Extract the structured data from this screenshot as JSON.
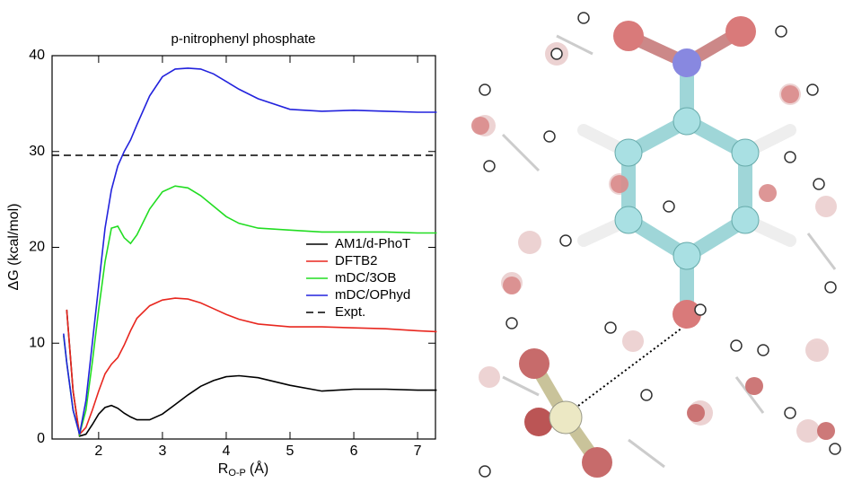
{
  "chart_data": {
    "type": "line",
    "title": "p-nitrophenyl phosphate",
    "xlabel": {
      "base": "R",
      "sub": "O-P",
      "unit": "(Å)"
    },
    "ylabel": "ΔG (kcal/mol)",
    "x": [
      1.45,
      1.5,
      1.6,
      1.7,
      1.8,
      1.9,
      2.0,
      2.1,
      2.2,
      2.3,
      2.4,
      2.5,
      2.6,
      2.8,
      3.0,
      3.2,
      3.4,
      3.6,
      3.8,
      4.0,
      4.2,
      4.5,
      5.0,
      5.5,
      6.0,
      6.5,
      7.0,
      7.3
    ],
    "series": [
      {
        "name": "AM1/d-PhoT",
        "color": "#000000",
        "values": [
          null,
          13.5,
          5,
          0.3,
          0.5,
          1.5,
          2.6,
          3.3,
          3.5,
          3.2,
          2.7,
          2.3,
          2.0,
          2.0,
          2.6,
          3.6,
          4.6,
          5.5,
          6.1,
          6.5,
          6.6,
          6.4,
          5.6,
          5.0,
          5.2,
          5.2,
          5.1,
          5.1
        ]
      },
      {
        "name": "DFTB2",
        "color": "#e8271f",
        "values": [
          null,
          13.5,
          5,
          0.5,
          1.2,
          3,
          5,
          6.8,
          7.8,
          8.5,
          9.8,
          11.3,
          12.6,
          13.9,
          14.5,
          14.7,
          14.6,
          14.2,
          13.6,
          13.0,
          12.5,
          12.0,
          11.7,
          11.7,
          11.6,
          11.5,
          11.3,
          11.2
        ]
      },
      {
        "name": "mDC/3OB",
        "color": "#22dd22",
        "values": [
          10.8,
          8,
          3,
          0.5,
          3,
          8,
          13.5,
          18.5,
          22,
          22.2,
          21,
          20.4,
          21.3,
          24,
          25.8,
          26.4,
          26.2,
          25.4,
          24.3,
          23.2,
          22.5,
          22,
          21.8,
          21.6,
          21.6,
          21.6,
          21.5,
          21.5
        ]
      },
      {
        "name": "mDC/OPhyd",
        "color": "#2222dd",
        "values": [
          11,
          8,
          3,
          0.5,
          4,
          10,
          16,
          22,
          26,
          28.5,
          30,
          31.2,
          32.8,
          35.8,
          37.8,
          38.6,
          38.7,
          38.6,
          38.1,
          37.3,
          36.5,
          35.5,
          34.4,
          34.2,
          34.3,
          34.2,
          34.1,
          34.1
        ]
      }
    ],
    "reference_lines": [
      {
        "name": "Expt.",
        "value": 29.6,
        "color": "#000000",
        "style": "dashed"
      }
    ],
    "xlim": [
      1.27,
      7.28
    ],
    "ylim": [
      0,
      40
    ],
    "xticks": [
      2,
      3,
      4,
      5,
      6,
      7
    ],
    "yticks": [
      0,
      10,
      20,
      30,
      40
    ],
    "legend": "right"
  }
}
